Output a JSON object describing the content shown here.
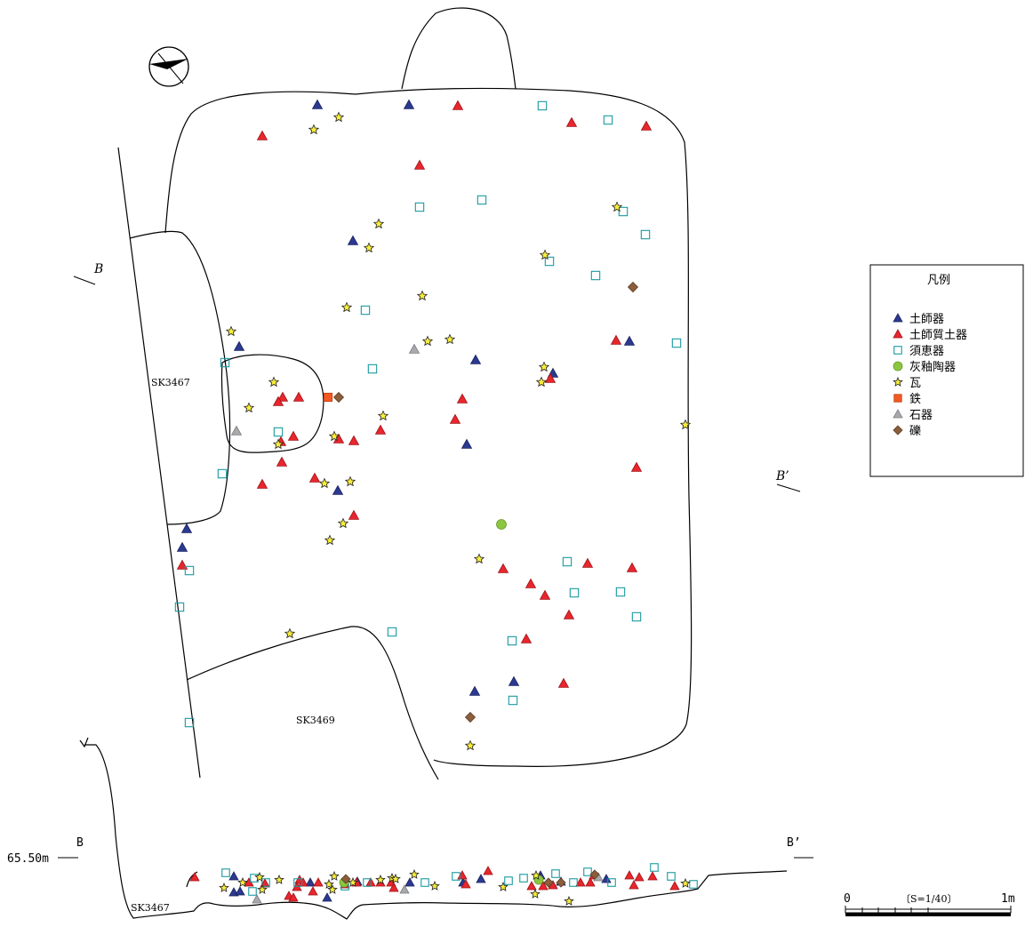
{
  "legend": {
    "title": "凡例",
    "items": [
      {
        "key": "hajiki",
        "label": "土師器",
        "symbol": "triangle",
        "fill": "#2b3990",
        "stroke": "#1b2460"
      },
      {
        "key": "hajishitsu",
        "label": "土師質土器",
        "symbol": "triangle",
        "fill": "#e8262d",
        "stroke": "#a01419"
      },
      {
        "key": "sueki",
        "label": "須恵器",
        "symbol": "square-outline",
        "fill": "none",
        "stroke": "#1a9aa0"
      },
      {
        "key": "kaiyu",
        "label": "灰釉陶器",
        "symbol": "circle",
        "fill": "#8cc63f",
        "stroke": "#6a9a2a"
      },
      {
        "key": "kawara",
        "label": "瓦",
        "symbol": "star",
        "fill": "#f7ec3b",
        "stroke": "#222222"
      },
      {
        "key": "tetsu",
        "label": "鉄",
        "symbol": "square",
        "fill": "#f15a24",
        "stroke": "#c43d10"
      },
      {
        "key": "sekki",
        "label": "石器",
        "symbol": "triangle",
        "fill": "#a7a9ac",
        "stroke": "#7d7f82"
      },
      {
        "key": "reki",
        "label": "礫",
        "symbol": "diamond",
        "fill": "#8b5e3c",
        "stroke": "#5e3c22"
      }
    ]
  },
  "features": {
    "sk3467": "SK3467",
    "sk3469": "SK3469",
    "section_sk3467": "SK3467"
  },
  "section": {
    "marker_b": "B",
    "marker_b_prime": "B’",
    "elevation": "65.50m",
    "section_b": "B",
    "section_b_prime": "B’"
  },
  "scale_bar": {
    "zero": "0",
    "ratio": "〔S=1/40〕",
    "end": "1m"
  },
  "finds": {
    "plan": {
      "hajiki": [
        [
          357,
          118
        ],
        [
          460,
          118
        ],
        [
          397,
          271
        ],
        [
          269,
          390
        ],
        [
          535,
          405
        ],
        [
          622,
          420
        ],
        [
          708,
          384
        ],
        [
          525,
          500
        ],
        [
          380,
          552
        ],
        [
          210,
          595
        ],
        [
          205,
          616
        ],
        [
          534,
          778
        ],
        [
          578,
          767
        ]
      ],
      "hajishitsu": [
        [
          515,
          119
        ],
        [
          295,
          153
        ],
        [
          643,
          138
        ],
        [
          727,
          142
        ],
        [
          472,
          186
        ],
        [
          693,
          383
        ],
        [
          619,
          426
        ],
        [
          318,
          447
        ],
        [
          336,
          447
        ],
        [
          313,
          452
        ],
        [
          520,
          449
        ],
        [
          512,
          472
        ],
        [
          428,
          484
        ],
        [
          330,
          491
        ],
        [
          381,
          494
        ],
        [
          398,
          496
        ],
        [
          316,
          497
        ],
        [
          317,
          520
        ],
        [
          716,
          526
        ],
        [
          295,
          545
        ],
        [
          354,
          538
        ],
        [
          398,
          580
        ],
        [
          205,
          636
        ],
        [
          566,
          640
        ],
        [
          661,
          634
        ],
        [
          711,
          639
        ],
        [
          597,
          657
        ],
        [
          613,
          670
        ],
        [
          640,
          692
        ],
        [
          592,
          719
        ],
        [
          634,
          769
        ]
      ],
      "sueki": [
        [
          610,
          119
        ],
        [
          684,
          135
        ],
        [
          542,
          225
        ],
        [
          472,
          233
        ],
        [
          701,
          238
        ],
        [
          726,
          264
        ],
        [
          618,
          294
        ],
        [
          670,
          310
        ],
        [
          411,
          349
        ],
        [
          761,
          386
        ],
        [
          419,
          415
        ],
        [
          253,
          408
        ],
        [
          313,
          486
        ],
        [
          250,
          533
        ],
        [
          638,
          632
        ],
        [
          213,
          642
        ],
        [
          646,
          667
        ],
        [
          698,
          666
        ],
        [
          202,
          683
        ],
        [
          716,
          694
        ],
        [
          441,
          711
        ],
        [
          576,
          721
        ],
        [
          577,
          788
        ],
        [
          213,
          813
        ]
      ],
      "kaiyu": [
        [
          564,
          590
        ]
      ],
      "kawara": [
        [
          381,
          132
        ],
        [
          353,
          146
        ],
        [
          426,
          252
        ],
        [
          415,
          279
        ],
        [
          694,
          233
        ],
        [
          613,
          287
        ],
        [
          475,
          333
        ],
        [
          390,
          346
        ],
        [
          260,
          373
        ],
        [
          506,
          382
        ],
        [
          481,
          384
        ],
        [
          612,
          413
        ],
        [
          609,
          430
        ],
        [
          308,
          430
        ],
        [
          280,
          459
        ],
        [
          431,
          468
        ],
        [
          771,
          478
        ],
        [
          376,
          491
        ],
        [
          313,
          500
        ],
        [
          365,
          544
        ],
        [
          394,
          542
        ],
        [
          386,
          589
        ],
        [
          371,
          608
        ],
        [
          539,
          629
        ],
        [
          326,
          713
        ],
        [
          529,
          839
        ]
      ],
      "tetsu": [
        [
          369,
          447
        ]
      ],
      "sekki": [
        [
          466,
          393
        ],
        [
          266,
          485
        ]
      ],
      "reki": [
        [
          712,
          323
        ],
        [
          381,
          447
        ],
        [
          529,
          807
        ]
      ]
    },
    "section": {
      "hajiki": [
        [
          263,
          986
        ],
        [
          349,
          993
        ],
        [
          263,
          1004
        ],
        [
          270,
          1003
        ],
        [
          521,
          993
        ],
        [
          541,
          989
        ],
        [
          608,
          985
        ],
        [
          631,
          992
        ],
        [
          682,
          989
        ],
        [
          368,
          1010
        ],
        [
          461,
          993
        ],
        [
          402,
          992
        ]
      ],
      "hajishitsu": [
        [
          219,
          987
        ],
        [
          280,
          993
        ],
        [
          298,
          994
        ],
        [
          337,
          990
        ],
        [
          341,
          993
        ],
        [
          334,
          998
        ],
        [
          358,
          993
        ],
        [
          325,
          1008
        ],
        [
          330,
          1010
        ],
        [
          352,
          1003
        ],
        [
          388,
          995
        ],
        [
          401,
          993
        ],
        [
          417,
          993
        ],
        [
          428,
          993
        ],
        [
          440,
          993
        ],
        [
          443,
          999
        ],
        [
          520,
          985
        ],
        [
          524,
          995
        ],
        [
          549,
          980
        ],
        [
          598,
          997
        ],
        [
          611,
          997
        ],
        [
          622,
          996
        ],
        [
          653,
          993
        ],
        [
          664,
          993
        ],
        [
          668,
          985
        ],
        [
          708,
          985
        ],
        [
          719,
          987
        ],
        [
          734,
          986
        ],
        [
          713,
          996
        ],
        [
          759,
          997
        ]
      ],
      "sueki": [
        [
          254,
          982
        ],
        [
          286,
          988
        ],
        [
          299,
          993
        ],
        [
          335,
          993
        ],
        [
          388,
          997
        ],
        [
          413,
          993
        ],
        [
          478,
          993
        ],
        [
          513,
          986
        ],
        [
          572,
          991
        ],
        [
          589,
          988
        ],
        [
          625,
          983
        ],
        [
          645,
          993
        ],
        [
          661,
          981
        ],
        [
          688,
          993
        ],
        [
          736,
          976
        ],
        [
          755,
          986
        ],
        [
          780,
          995
        ],
        [
          284,
          1003
        ]
      ],
      "kaiyu": [
        [
          387,
          993
        ],
        [
          606,
          990
        ]
      ],
      "kawara": [
        [
          252,
          999
        ],
        [
          273,
          993
        ],
        [
          295,
          1001
        ],
        [
          314,
          990
        ],
        [
          370,
          995
        ],
        [
          374,
          1001
        ],
        [
          397,
          993
        ],
        [
          428,
          990
        ],
        [
          441,
          988
        ],
        [
          466,
          984
        ],
        [
          489,
          997
        ],
        [
          566,
          998
        ],
        [
          602,
          1006
        ],
        [
          603,
          985
        ],
        [
          640,
          1014
        ],
        [
          771,
          994
        ],
        [
          292,
          987
        ],
        [
          445,
          989
        ],
        [
          376,
          986
        ]
      ],
      "tetsu": [],
      "sekki": [
        [
          289,
          1012
        ],
        [
          455,
          1001
        ],
        [
          673,
          987
        ]
      ],
      "reki": [
        [
          389,
          989
        ],
        [
          617,
          993
        ],
        [
          669,
          984
        ],
        [
          631,
          993
        ]
      ]
    }
  }
}
